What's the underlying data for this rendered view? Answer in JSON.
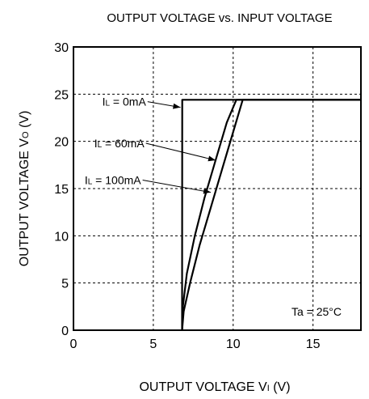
{
  "chart_data": {
    "type": "line",
    "title": "OUTPUT VOLTAGE vs. INPUT VOLTAGE",
    "xlabel": {
      "main": "OUTPUT VOLTAGE  V",
      "sub": "I",
      "unit": " (V)"
    },
    "ylabel": {
      "main": "OUTPUT VOLTAGE  V",
      "sub": "O",
      "unit": " (V)"
    },
    "xlim": [
      0,
      18
    ],
    "ylim": [
      0,
      30
    ],
    "x_ticks": [
      0,
      5,
      10,
      15
    ],
    "y_ticks": [
      0,
      5,
      10,
      15,
      20,
      25,
      30
    ],
    "x_tick_labels": [
      "0",
      "5",
      "10",
      "15"
    ],
    "y_tick_labels": [
      "0",
      "5",
      "10",
      "15",
      "20",
      "25",
      "30"
    ],
    "grid": true,
    "grid_style": "dashed",
    "note": "Ta = 25°C",
    "series": [
      {
        "name": "IL = 0mA",
        "x": [
          6.8,
          6.8,
          6.81,
          18
        ],
        "y": [
          0,
          0,
          24.4,
          24.4
        ]
      },
      {
        "name": "IL = 60mA",
        "x": [
          6.8,
          6.85,
          7.1,
          7.6,
          8.2,
          8.9,
          9.6,
          10.2,
          18
        ],
        "y": [
          0,
          2.5,
          6.0,
          10.0,
          14.0,
          18.0,
          22.0,
          24.4,
          24.4
        ]
      },
      {
        "name": "IL = 100mA",
        "x": [
          6.8,
          6.9,
          7.3,
          7.9,
          8.6,
          9.3,
          10.0,
          10.6,
          18
        ],
        "y": [
          0,
          2.0,
          5.0,
          9.0,
          13.0,
          17.0,
          21.0,
          24.4,
          24.4
        ]
      }
    ],
    "annotations": [
      {
        "label": "L",
        "prefix": "I",
        "suffix": " = 0mA",
        "text_x": 1.8,
        "text_y": 24.2,
        "arrow_to": [
          6.7,
          23.6
        ]
      },
      {
        "label": "L",
        "prefix": "I",
        "suffix": " = 60mA",
        "text_x": 1.3,
        "text_y": 19.8,
        "arrow_to": [
          8.9,
          18.0
        ]
      },
      {
        "label": "L",
        "prefix": "I",
        "suffix": " = 100mA",
        "text_x": 0.7,
        "text_y": 15.9,
        "arrow_to": [
          8.6,
          14.6
        ]
      }
    ],
    "colors": {
      "line": "#000000",
      "grid": "#000000",
      "background": "#ffffff"
    }
  }
}
